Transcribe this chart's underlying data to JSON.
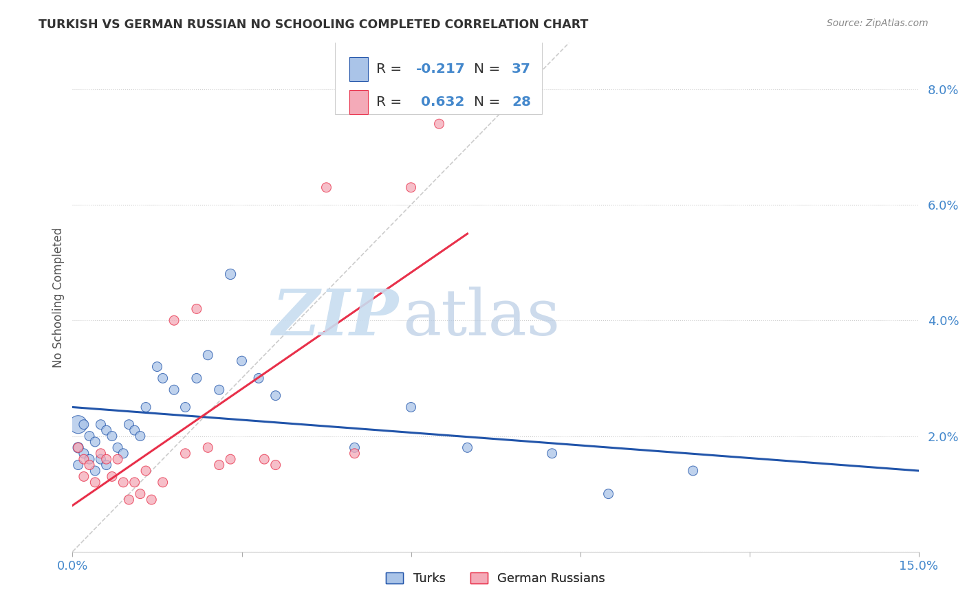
{
  "title": "TURKISH VS GERMAN RUSSIAN NO SCHOOLING COMPLETED CORRELATION CHART",
  "source": "Source: ZipAtlas.com",
  "ylabel": "No Schooling Completed",
  "xlim": [
    0.0,
    0.15
  ],
  "ylim": [
    0.0,
    0.088
  ],
  "blue_color": "#aac4e8",
  "pink_color": "#f4aab8",
  "blue_line_color": "#2255aa",
  "pink_line_color": "#e8304a",
  "diag_color": "#cccccc",
  "R_blue": -0.217,
  "N_blue": 37,
  "R_pink": 0.632,
  "N_pink": 28,
  "blue_x": [
    0.001,
    0.001,
    0.001,
    0.002,
    0.002,
    0.003,
    0.003,
    0.004,
    0.004,
    0.005,
    0.005,
    0.006,
    0.006,
    0.007,
    0.008,
    0.009,
    0.01,
    0.011,
    0.012,
    0.013,
    0.015,
    0.016,
    0.018,
    0.02,
    0.022,
    0.024,
    0.026,
    0.028,
    0.03,
    0.033,
    0.036,
    0.05,
    0.06,
    0.07,
    0.085,
    0.095,
    0.11
  ],
  "blue_y": [
    0.022,
    0.018,
    0.015,
    0.022,
    0.017,
    0.02,
    0.016,
    0.019,
    0.014,
    0.022,
    0.016,
    0.021,
    0.015,
    0.02,
    0.018,
    0.017,
    0.022,
    0.021,
    0.02,
    0.025,
    0.032,
    0.03,
    0.028,
    0.025,
    0.03,
    0.034,
    0.028,
    0.048,
    0.033,
    0.03,
    0.027,
    0.018,
    0.025,
    0.018,
    0.017,
    0.01,
    0.014
  ],
  "blue_size": [
    350,
    120,
    100,
    100,
    100,
    100,
    100,
    100,
    100,
    100,
    100,
    100,
    100,
    100,
    100,
    100,
    100,
    100,
    100,
    100,
    100,
    100,
    100,
    100,
    100,
    100,
    100,
    120,
    100,
    100,
    100,
    100,
    100,
    100,
    100,
    100,
    100
  ],
  "pink_x": [
    0.001,
    0.002,
    0.002,
    0.003,
    0.004,
    0.005,
    0.006,
    0.007,
    0.008,
    0.009,
    0.01,
    0.011,
    0.012,
    0.013,
    0.014,
    0.016,
    0.018,
    0.02,
    0.022,
    0.024,
    0.026,
    0.028,
    0.034,
    0.036,
    0.045,
    0.05,
    0.06,
    0.065
  ],
  "pink_y": [
    0.018,
    0.016,
    0.013,
    0.015,
    0.012,
    0.017,
    0.016,
    0.013,
    0.016,
    0.012,
    0.009,
    0.012,
    0.01,
    0.014,
    0.009,
    0.012,
    0.04,
    0.017,
    0.042,
    0.018,
    0.015,
    0.016,
    0.016,
    0.015,
    0.063,
    0.017,
    0.063,
    0.074
  ],
  "pink_size": [
    100,
    100,
    100,
    100,
    100,
    100,
    100,
    100,
    100,
    100,
    100,
    100,
    100,
    100,
    100,
    100,
    100,
    100,
    100,
    100,
    100,
    100,
    100,
    100,
    100,
    100,
    100,
    100
  ],
  "watermark_zip": "ZIP",
  "watermark_atlas": "atlas",
  "legend_label_blue": "Turks",
  "legend_label_pink": "German Russians",
  "background_color": "#FFFFFF",
  "grid_color": "#cccccc",
  "tick_color": "#4488cc",
  "label_color": "#555555"
}
